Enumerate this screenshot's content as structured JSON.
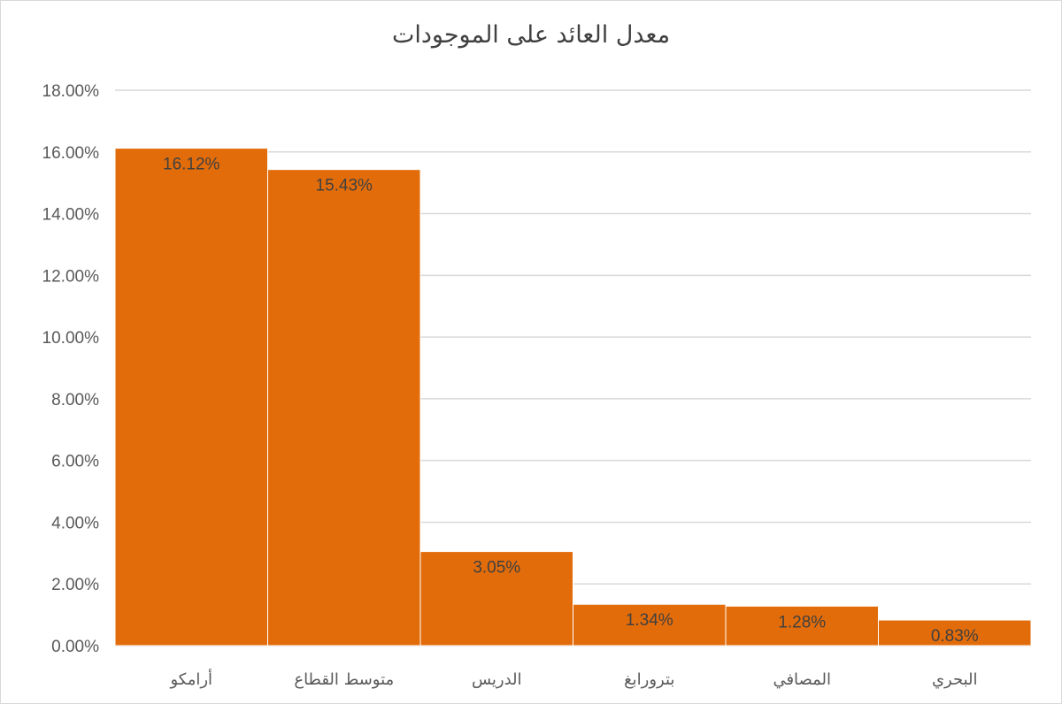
{
  "chart_data": {
    "type": "bar",
    "title": "معدل العائد على الموجودات",
    "categories": [
      "أرامكو",
      "متوسط القطاع",
      "الدريس",
      "بترورابغ",
      "المصافي",
      "البحري"
    ],
    "values": [
      16.12,
      15.43,
      3.05,
      1.34,
      1.28,
      0.83
    ],
    "data_labels": [
      "16.12%",
      "15.43%",
      "3.05%",
      "1.34%",
      "1.28%",
      "0.83%"
    ],
    "yticks": [
      "0.00%",
      "2.00%",
      "4.00%",
      "6.00%",
      "8.00%",
      "10.00%",
      "12.00%",
      "14.00%",
      "16.00%",
      "18.00%"
    ],
    "ylim": [
      0,
      18
    ],
    "grid": true,
    "legend": "none",
    "bar_color": "#e36c0a",
    "xlabel": "",
    "ylabel": ""
  }
}
